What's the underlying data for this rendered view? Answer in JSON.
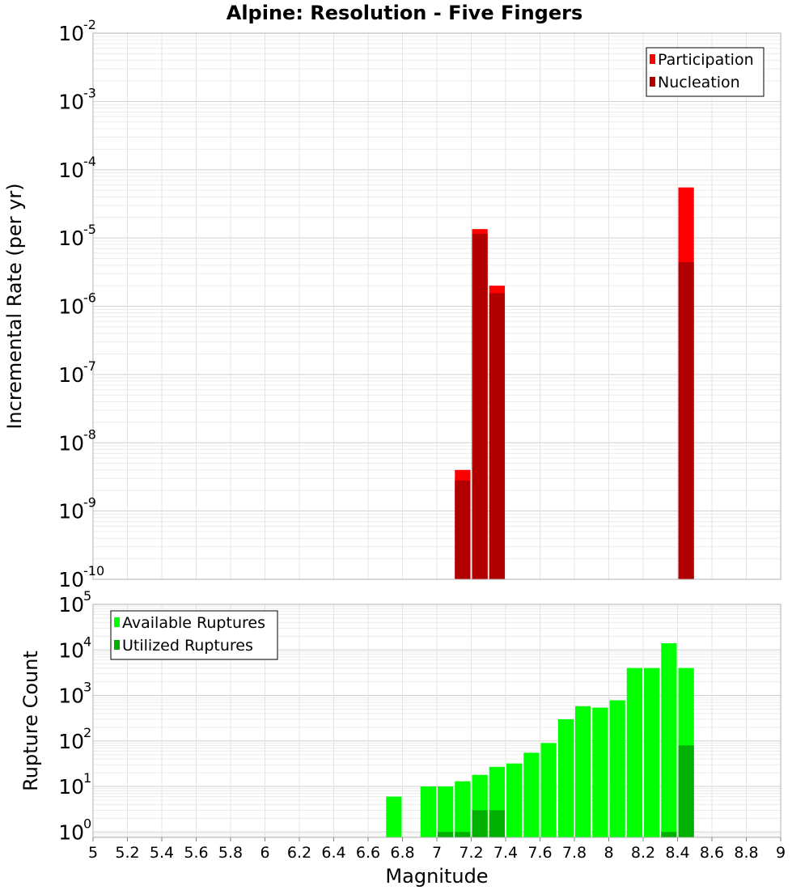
{
  "chart_data": {
    "type": "bar",
    "title": "Alpine: Resolution - Five Fingers",
    "xlabel": "Magnitude",
    "xlim": [
      5,
      9
    ],
    "xticks": [
      "5",
      "5.2",
      "5.4",
      "5.6",
      "5.8",
      "6",
      "6.2",
      "6.4",
      "6.6",
      "6.8",
      "7",
      "7.2",
      "7.4",
      "7.6",
      "7.8",
      "8",
      "8.2",
      "8.4",
      "8.6",
      "8.8",
      "9"
    ],
    "bin_width": 0.1,
    "panels": [
      {
        "id": "rates",
        "ylabel": "Incremental Rate (per yr)",
        "yscale": "log",
        "ylim": [
          1e-10,
          0.01
        ],
        "ytick_exponents": [
          "-2",
          "-3",
          "-4",
          "-5",
          "-6",
          "-7",
          "-8",
          "-9",
          "-10"
        ],
        "ytick_base": "10",
        "legend": {
          "position": "top-right",
          "entries": [
            "Participation",
            "Nucleation"
          ]
        },
        "series": [
          {
            "name": "Participation",
            "color": "#ff0000",
            "x": [
              7.15,
              7.25,
              7.35,
              8.45
            ],
            "values": [
              4e-09,
              1.35e-05,
              2e-06,
              5.5e-05
            ]
          },
          {
            "name": "Nucleation",
            "color": "#b00000",
            "x": [
              7.15,
              7.25,
              7.35,
              8.45
            ],
            "values": [
              2.8e-09,
              1.15e-05,
              1.55e-06,
              4.4e-06
            ]
          }
        ]
      },
      {
        "id": "counts",
        "ylabel": "Rupture Count",
        "yscale": "log",
        "ylim": [
          0.76,
          100000.0
        ],
        "ytick_exponents": [
          "5",
          "4",
          "3",
          "2",
          "1",
          "0"
        ],
        "ytick_base": "10",
        "legend": {
          "position": "top-left",
          "entries": [
            "Available Ruptures",
            "Utilized Ruptures"
          ]
        },
        "series": [
          {
            "name": "Available Ruptures",
            "color": "#00ff00",
            "x": [
              6.75,
              6.95,
              7.05,
              7.15,
              7.25,
              7.35,
              7.45,
              7.55,
              7.65,
              7.75,
              7.85,
              7.95,
              8.05,
              8.15,
              8.25,
              8.35,
              8.45
            ],
            "values": [
              6,
              10,
              10,
              13,
              18,
              27,
              32,
              55,
              90,
              300,
              580,
              540,
              780,
              4000,
              4000,
              14000,
              4000
            ]
          },
          {
            "name": "Utilized Ruptures",
            "color": "#00b000",
            "x": [
              7.05,
              7.15,
              7.25,
              7.35,
              8.35,
              8.45
            ],
            "values": [
              1,
              1,
              3,
              3,
              1,
              80
            ]
          }
        ]
      }
    ]
  }
}
